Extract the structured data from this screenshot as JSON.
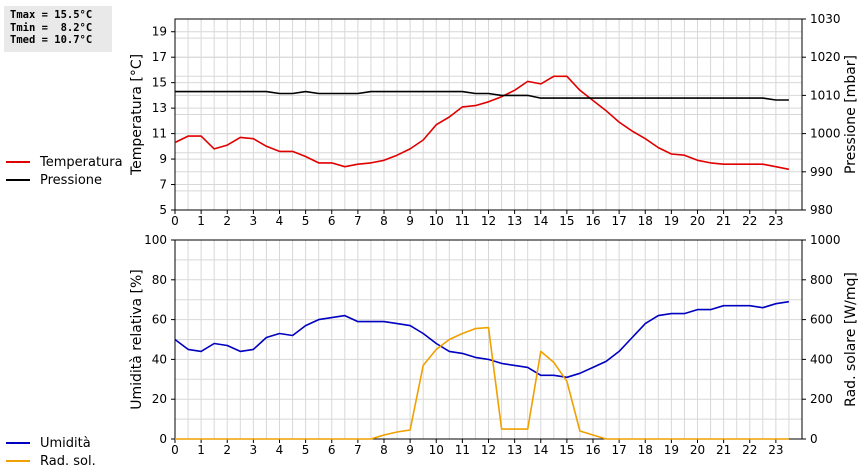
{
  "stats": {
    "tmax_label": "Tmax = 15.5°C",
    "tmin_label": "Tmin =  8.2°C",
    "tmed_label": "Tmed = 10.7°C"
  },
  "legends": {
    "top": [
      {
        "label": "Temperatura",
        "color": "#e00000"
      },
      {
        "label": "Pressione",
        "color": "#000000"
      }
    ],
    "bottom": [
      {
        "label": "Umidità",
        "color": "#0000c0"
      },
      {
        "label": "Rad. sol.",
        "color": "#f0a000"
      }
    ]
  },
  "chart_data": [
    {
      "type": "line",
      "ylabel": "Temperatura [°C]",
      "y2label": "Pressione [mbar]",
      "ylim": [
        5,
        20
      ],
      "y2lim": [
        980,
        1030
      ],
      "yticks": [
        5,
        7,
        9,
        11,
        13,
        15,
        17,
        19
      ],
      "y2ticks": [
        980,
        990,
        1000,
        1010,
        1020,
        1030
      ],
      "xlim": [
        0,
        24
      ],
      "xticks": [
        0,
        1,
        2,
        3,
        4,
        5,
        6,
        7,
        8,
        9,
        10,
        11,
        12,
        13,
        14,
        15,
        16,
        17,
        18,
        19,
        20,
        21,
        22,
        23
      ],
      "grid": true,
      "series": [
        {
          "name": "Temperatura",
          "axis": "left",
          "color": "#e00000",
          "x": [
            0,
            0.5,
            1,
            1.5,
            2,
            2.5,
            3,
            3.5,
            4,
            4.5,
            5,
            5.5,
            6,
            6.5,
            7,
            7.5,
            8,
            8.5,
            9,
            9.5,
            10,
            10.5,
            11,
            11.5,
            12,
            12.5,
            13,
            13.5,
            14,
            14.5,
            15,
            15.5,
            16,
            16.5,
            17,
            17.5,
            18,
            18.5,
            19,
            19.5,
            20,
            20.5,
            21,
            21.5,
            22,
            22.5,
            23,
            23.5
          ],
          "values": [
            10.3,
            10.8,
            10.8,
            9.8,
            10.1,
            10.7,
            10.6,
            10.0,
            9.6,
            9.6,
            9.2,
            8.7,
            8.7,
            8.4,
            8.6,
            8.7,
            8.9,
            9.3,
            9.8,
            10.5,
            11.7,
            12.3,
            13.1,
            13.2,
            13.5,
            13.9,
            14.4,
            15.1,
            14.9,
            15.5,
            15.5,
            14.4,
            13.6,
            12.8,
            11.9,
            11.2,
            10.6,
            9.9,
            9.4,
            9.3,
            8.9,
            8.7,
            8.6,
            8.6,
            8.6,
            8.6,
            8.4,
            8.2
          ]
        },
        {
          "name": "Pressione",
          "axis": "right",
          "color": "#000000",
          "x": [
            0,
            0.5,
            1,
            1.5,
            2,
            2.5,
            3,
            3.5,
            4,
            4.5,
            5,
            5.5,
            6,
            6.5,
            7,
            7.5,
            8,
            8.5,
            9,
            9.5,
            10,
            10.5,
            11,
            11.5,
            12,
            12.5,
            13,
            13.5,
            14,
            14.5,
            15,
            15.5,
            16,
            16.5,
            17,
            17.5,
            18,
            18.5,
            19,
            19.5,
            20,
            20.5,
            21,
            21.5,
            22,
            22.5,
            23,
            23.5
          ],
          "values": [
            1011,
            1011,
            1011,
            1011,
            1011,
            1011,
            1011,
            1011,
            1010.5,
            1010.5,
            1011,
            1010.5,
            1010.5,
            1010.5,
            1010.5,
            1011,
            1011,
            1011,
            1011,
            1011,
            1011,
            1011,
            1011,
            1010.5,
            1010.5,
            1010,
            1010,
            1010,
            1009.3,
            1009.3,
            1009.3,
            1009.3,
            1009.3,
            1009.3,
            1009.3,
            1009.3,
            1009.3,
            1009.3,
            1009.3,
            1009.3,
            1009.3,
            1009.3,
            1009.3,
            1009.3,
            1009.3,
            1009.3,
            1008.8,
            1008.8
          ]
        }
      ]
    },
    {
      "type": "line",
      "ylabel": "Umidità relativa [%]",
      "y2label": "Rad. solare [W/mq]",
      "ylim": [
        0,
        100
      ],
      "y2lim": [
        0,
        1000
      ],
      "yticks": [
        0,
        20,
        40,
        60,
        80,
        100
      ],
      "y2ticks": [
        0,
        200,
        400,
        600,
        800,
        1000
      ],
      "xlim": [
        0,
        24
      ],
      "xticks": [
        0,
        1,
        2,
        3,
        4,
        5,
        6,
        7,
        8,
        9,
        10,
        11,
        12,
        13,
        14,
        15,
        16,
        17,
        18,
        19,
        20,
        21,
        22,
        23
      ],
      "grid": true,
      "series": [
        {
          "name": "Umidità",
          "axis": "left",
          "color": "#0000c0",
          "x": [
            0,
            0.5,
            1,
            1.5,
            2,
            2.5,
            3,
            3.5,
            4,
            4.5,
            5,
            5.5,
            6,
            6.5,
            7,
            7.5,
            8,
            8.5,
            9,
            9.5,
            10,
            10.5,
            11,
            11.5,
            12,
            12.5,
            13,
            13.5,
            14,
            14.5,
            15,
            15.5,
            16,
            16.5,
            17,
            17.5,
            18,
            18.5,
            19,
            19.5,
            20,
            20.5,
            21,
            21.5,
            22,
            22.5,
            23,
            23.5
          ],
          "values": [
            50,
            45,
            44,
            48,
            47,
            44,
            45,
            51,
            53,
            52,
            57,
            60,
            61,
            62,
            59,
            59,
            59,
            58,
            57,
            53,
            48,
            44,
            43,
            41,
            40,
            38,
            37,
            36,
            32,
            32,
            31,
            33,
            36,
            39,
            44,
            51,
            58,
            62,
            63,
            63,
            65,
            65,
            67,
            67,
            67,
            66,
            68,
            69
          ]
        },
        {
          "name": "Rad. sol.",
          "axis": "right",
          "color": "#f0a000",
          "x": [
            0,
            0.5,
            1,
            1.5,
            2,
            2.5,
            3,
            3.5,
            4,
            4.5,
            5,
            5.5,
            6,
            6.5,
            7,
            7.5,
            8,
            8.5,
            9,
            9.5,
            10,
            10.5,
            11,
            11.5,
            12,
            12.5,
            13,
            13.5,
            14,
            14.5,
            15,
            15.5,
            16,
            16.5,
            17,
            17.5,
            18,
            18.5,
            19,
            19.5,
            20,
            20.5,
            21,
            21.5,
            22,
            22.5,
            23,
            23.5
          ],
          "values": [
            0,
            0,
            0,
            0,
            0,
            0,
            0,
            0,
            0,
            0,
            0,
            0,
            0,
            0,
            0,
            0,
            20,
            35,
            45,
            370,
            450,
            500,
            530,
            555,
            560,
            50,
            50,
            50,
            440,
            385,
            290,
            40,
            20,
            0,
            0,
            0,
            0,
            0,
            0,
            0,
            0,
            0,
            0,
            0,
            0,
            0,
            0,
            0
          ]
        }
      ]
    }
  ]
}
